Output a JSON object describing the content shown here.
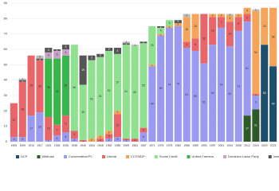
{
  "chart_data": {
    "type": "stacked-bar",
    "categories": [
      "1905",
      "1909",
      "1913",
      "1917",
      "1921",
      "1926",
      "1930",
      "1935",
      "1940",
      "1944",
      "1948",
      "1952",
      "1955",
      "1959",
      "1963",
      "1967",
      "1971",
      "1975",
      "1979",
      "1982",
      "1986",
      "1989",
      "1993",
      "1997",
      "2001",
      "2004",
      "2008",
      "2012",
      "2015",
      "2019",
      "2023"
    ],
    "ylim": [
      0,
      90
    ],
    "yticks": [
      0,
      10,
      20,
      30,
      40,
      50,
      60,
      70,
      80,
      90
    ],
    "grid": true,
    "legend": "bottom",
    "series": [
      {
        "name": "UCP",
        "color": "#1d4e6b",
        "values": [
          0,
          0,
          0,
          0,
          0,
          0,
          0,
          0,
          0,
          0,
          0,
          0,
          0,
          0,
          0,
          0,
          0,
          0,
          0,
          0,
          0,
          0,
          0,
          0,
          0,
          0,
          0,
          0,
          0,
          63,
          49
        ]
      },
      {
        "name": "Wildrose",
        "color": "#2d5a27",
        "values": [
          0,
          0,
          0,
          0,
          0,
          0,
          0,
          0,
          0,
          0,
          0,
          0,
          0,
          0,
          0,
          0,
          0,
          0,
          0,
          0,
          0,
          0,
          0,
          0,
          0,
          0,
          0,
          17,
          21,
          0,
          0
        ]
      },
      {
        "name": "Conservative/PC",
        "color": "#9a9af0",
        "values": [
          3,
          3,
          17,
          19,
          1,
          4,
          6,
          2,
          0,
          0,
          0,
          2,
          3,
          1,
          0,
          6,
          49,
          69,
          74,
          75,
          61,
          59,
          51,
          63,
          74,
          62,
          72,
          61,
          9,
          0,
          0
        ]
      },
      {
        "name": "Liberal",
        "color": "#e8666a",
        "values": [
          22,
          36,
          39,
          34,
          15,
          7,
          11,
          5,
          1,
          0,
          2,
          3,
          15,
          1,
          2,
          3,
          0,
          0,
          0,
          0,
          4,
          8,
          32,
          18,
          7,
          16,
          9,
          5,
          1,
          0,
          0
        ]
      },
      {
        "name": "CCF/NDP",
        "color": "#f4a55a",
        "values": [
          0,
          0,
          0,
          0,
          0,
          0,
          0,
          0,
          0,
          2,
          2,
          2,
          2,
          0,
          0,
          0,
          1,
          1,
          1,
          2,
          16,
          16,
          0,
          2,
          2,
          4,
          2,
          4,
          54,
          24,
          38
        ]
      },
      {
        "name": "Social Credit",
        "color": "#8fe08f",
        "values": [
          0,
          0,
          0,
          0,
          0,
          0,
          0,
          56,
          36,
          51,
          51,
          52,
          37,
          61,
          60,
          55,
          25,
          4,
          4,
          0,
          0,
          0,
          0,
          0,
          0,
          0,
          0,
          0,
          0,
          0,
          0
        ]
      },
      {
        "name": "United Farmers",
        "color": "#39b54a",
        "values": [
          0,
          0,
          0,
          0,
          38,
          43,
          39,
          0,
          0,
          0,
          0,
          0,
          0,
          0,
          0,
          0,
          0,
          0,
          0,
          0,
          0,
          0,
          0,
          0,
          0,
          0,
          0,
          0,
          0,
          0,
          0
        ]
      },
      {
        "name": "Dominion Labor Party",
        "color": "#c8a2c8",
        "values": [
          0,
          0,
          0,
          0,
          4,
          5,
          4,
          0,
          0,
          0,
          0,
          0,
          0,
          0,
          0,
          0,
          0,
          0,
          0,
          0,
          0,
          0,
          0,
          0,
          0,
          0,
          0,
          0,
          0,
          0,
          0
        ]
      },
      {
        "name": "Independents",
        "color": "#555555",
        "values": [
          0,
          1,
          0,
          1,
          3,
          1,
          3,
          0,
          19,
          3,
          2,
          2,
          4,
          1,
          0,
          1,
          0,
          1,
          0,
          2,
          0,
          0,
          0,
          0,
          0,
          0,
          0,
          0,
          0,
          0,
          0
        ]
      },
      {
        "name": "Other",
        "color": "#bbbbbb",
        "values": [
          0,
          1,
          0,
          2,
          0,
          0,
          0,
          0,
          0,
          0,
          0,
          0,
          0,
          1,
          1,
          0,
          0,
          0,
          0,
          0,
          2,
          0,
          0,
          0,
          0,
          1,
          0,
          0,
          1,
          0,
          0
        ]
      }
    ]
  }
}
